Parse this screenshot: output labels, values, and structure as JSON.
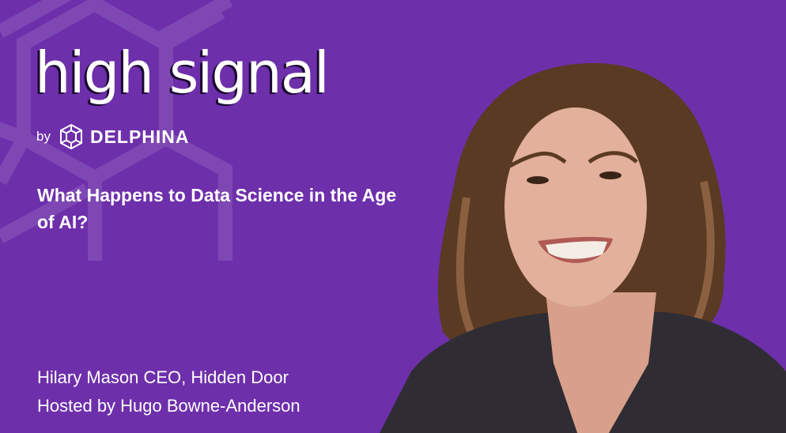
{
  "podcast": {
    "title": "high signal",
    "by_label": "by",
    "brand": "DELPHINA",
    "brand_icon": "delphina-cube-logo-icon"
  },
  "episode": {
    "headline": "What Happens to Data Science in the Age of AI?",
    "guest_line": "Hilary Mason CEO, Hidden Door",
    "host_line": "Hosted by Hugo Bowne-Anderson"
  },
  "colors": {
    "background": "#6e2fab",
    "pattern": "#8450b6",
    "text": "#ffffff"
  }
}
